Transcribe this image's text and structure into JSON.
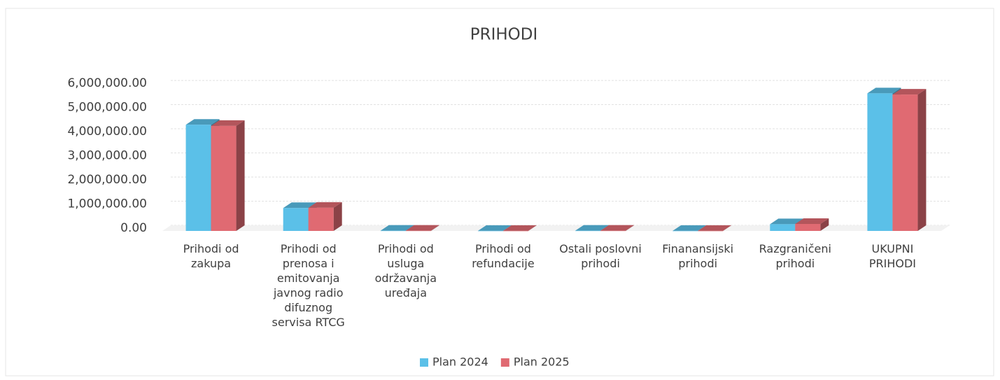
{
  "chart_data": {
    "type": "bar3d",
    "title": "PRIHODI",
    "categories": [
      "Prihodi od zakupa",
      "Prihodi od prenosa i emitovanja javnog radio difuznog servisa RTCG",
      "Prihodi od usluga održavanja uređaja",
      "Prihodi od refundacije",
      "Ostali poslovni prihodi",
      "Finanansijski prihodi",
      "Razgraničeni prihodi",
      "UKUPNI PRIHODI"
    ],
    "series": [
      {
        "name": "Plan 2024",
        "color": "#5bc0e8",
        "values": [
          4400000,
          950000,
          10000,
          5000,
          10000,
          5000,
          280000,
          5700000
        ]
      },
      {
        "name": "Plan 2025",
        "color": "#e06a72",
        "values": [
          4350000,
          960000,
          10000,
          5000,
          10000,
          5000,
          290000,
          5650000
        ]
      }
    ],
    "ylim": [
      0,
      6000000
    ],
    "yticks": [
      {
        "value": 0,
        "label": "0.00"
      },
      {
        "value": 1000000,
        "label": "1,000,000.00"
      },
      {
        "value": 2000000,
        "label": "2,000,000.00"
      },
      {
        "value": 3000000,
        "label": "3,000,000.00"
      },
      {
        "value": 4000000,
        "label": "4,000,000.00"
      },
      {
        "value": 5000000,
        "label": "5,000,000.00"
      },
      {
        "value": 6000000,
        "label": "6,000,000.00"
      }
    ],
    "grid": true,
    "legend": "bottom"
  }
}
